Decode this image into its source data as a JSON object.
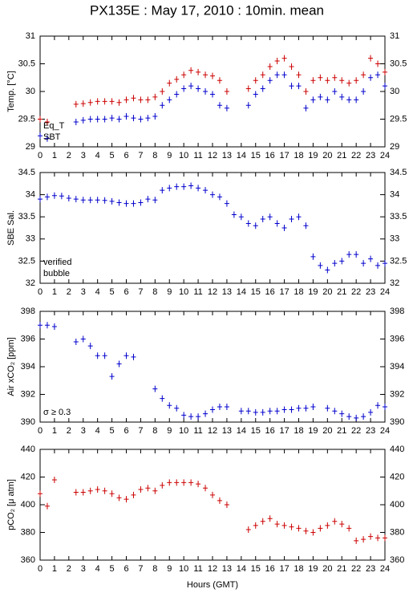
{
  "chart_data": [
    {
      "type": "scatter",
      "title": "PX135E : May 17, 2010 : 10min. mean",
      "ylabel": "Temp. [°C]",
      "x": [
        0,
        0.5,
        1,
        1.5,
        2,
        2.5,
        3,
        3.5,
        4,
        4.5,
        5,
        5.5,
        6,
        6.5,
        7,
        7.5,
        8,
        8.5,
        9,
        9.5,
        10,
        10.5,
        11,
        11.5,
        12,
        12.5,
        13,
        13.5,
        14,
        14.5,
        15,
        15.5,
        16,
        16.5,
        17,
        17.5,
        18,
        18.5,
        19,
        19.5,
        20,
        20.5,
        21,
        21.5,
        22,
        22.5,
        23,
        23.5,
        24
      ],
      "series": [
        {
          "name": "Eq_T",
          "color": "#cc0000",
          "values": [
            29.5,
            29.45,
            null,
            null,
            null,
            29.77,
            29.78,
            29.8,
            29.82,
            29.82,
            29.82,
            29.8,
            29.85,
            29.88,
            29.85,
            29.85,
            29.9,
            30.0,
            30.15,
            30.22,
            30.3,
            30.38,
            30.35,
            30.3,
            30.28,
            30.2,
            30.0,
            null,
            null,
            30.05,
            30.2,
            30.3,
            30.45,
            30.55,
            30.6,
            30.45,
            30.3,
            30.0,
            30.2,
            30.25,
            30.2,
            30.25,
            30.2,
            30.15,
            30.2,
            30.3,
            30.6,
            30.5,
            30.35
          ]
        },
        {
          "name": "SBT",
          "color": "#0000cc",
          "values": [
            29.2,
            29.15,
            null,
            null,
            null,
            29.45,
            29.48,
            29.5,
            29.5,
            29.5,
            29.52,
            29.5,
            29.55,
            29.52,
            29.5,
            29.52,
            29.55,
            29.75,
            29.85,
            29.95,
            30.05,
            30.1,
            30.05,
            30.0,
            29.95,
            29.75,
            29.7,
            null,
            null,
            29.75,
            29.95,
            30.05,
            30.2,
            30.3,
            30.3,
            30.1,
            30.1,
            29.7,
            29.85,
            29.9,
            29.85,
            30.0,
            29.9,
            29.85,
            29.85,
            30.0,
            30.25,
            30.3,
            30.1
          ]
        }
      ],
      "xlim": [
        0,
        24
      ],
      "xticks": [
        0,
        1,
        2,
        3,
        4,
        5,
        6,
        7,
        8,
        9,
        10,
        11,
        12,
        13,
        14,
        15,
        16,
        17,
        18,
        19,
        20,
        21,
        22,
        23,
        24
      ],
      "ylim": [
        29,
        31
      ],
      "yticks": [
        29,
        29.5,
        30,
        30.5,
        31
      ]
    },
    {
      "type": "scatter",
      "ylabel": "SBE Sal.",
      "x": [
        0,
        0.5,
        1,
        1.5,
        2,
        2.5,
        3,
        3.5,
        4,
        4.5,
        5,
        5.5,
        6,
        6.5,
        7,
        7.5,
        8,
        8.5,
        9,
        9.5,
        10,
        10.5,
        11,
        11.5,
        12,
        12.5,
        13,
        13.5,
        14,
        14.5,
        15,
        15.5,
        16,
        16.5,
        17,
        17.5,
        18,
        18.5,
        19,
        19.5,
        20,
        20.5,
        21,
        21.5,
        22,
        22.5,
        23,
        23.5,
        24
      ],
      "series": [
        {
          "name": "verified",
          "color": "#0000cc",
          "values": [
            33.9,
            33.95,
            33.98,
            33.97,
            33.92,
            33.9,
            33.88,
            33.88,
            33.88,
            33.87,
            33.85,
            33.82,
            33.8,
            33.8,
            33.82,
            33.9,
            33.88,
            34.1,
            34.15,
            34.18,
            34.18,
            34.2,
            34.15,
            34.1,
            34.0,
            33.95,
            33.8,
            33.55,
            33.5,
            33.35,
            33.3,
            33.45,
            33.5,
            33.35,
            33.25,
            33.45,
            33.5,
            33.3,
            32.6,
            32.4,
            32.3,
            32.45,
            32.5,
            32.65,
            32.65,
            32.45,
            32.55,
            32.4,
            32.45
          ]
        }
      ],
      "annotations": [
        {
          "text": "bubble",
          "color": "#cc00cc"
        }
      ],
      "xlim": [
        0,
        24
      ],
      "xticks": [
        0,
        1,
        2,
        3,
        4,
        5,
        6,
        7,
        8,
        9,
        10,
        11,
        12,
        13,
        14,
        15,
        16,
        17,
        18,
        19,
        20,
        21,
        22,
        23,
        24
      ],
      "ylim": [
        32,
        34.5
      ],
      "yticks": [
        32,
        32.5,
        33,
        33.5,
        34,
        34.5
      ]
    },
    {
      "type": "scatter",
      "ylabel": "Air xCO₂ [ppm]",
      "x": [
        0,
        0.5,
        1,
        1.5,
        2,
        2.5,
        3,
        3.5,
        4,
        4.5,
        5,
        5.5,
        6,
        6.5,
        7,
        7.5,
        8,
        8.5,
        9,
        9.5,
        10,
        10.5,
        11,
        11.5,
        12,
        12.5,
        13,
        13.5,
        14,
        14.5,
        15,
        15.5,
        16,
        16.5,
        17,
        17.5,
        18,
        18.5,
        19,
        19.5,
        20,
        20.5,
        21,
        21.5,
        22,
        22.5,
        23,
        23.5,
        24
      ],
      "series": [
        {
          "name": "xCO2",
          "color": "#0000cc",
          "values": [
            397,
            397,
            396.9,
            null,
            null,
            395.8,
            396,
            395.5,
            394.8,
            394.8,
            393.3,
            394.2,
            394.8,
            394.7,
            null,
            null,
            392.4,
            391.7,
            391.2,
            391,
            390.5,
            390.4,
            390.4,
            390.6,
            390.9,
            391.1,
            391.1,
            null,
            390.8,
            390.8,
            390.7,
            390.7,
            390.8,
            390.8,
            390.9,
            390.9,
            391,
            391,
            391.1,
            null,
            391,
            390.8,
            390.6,
            390.4,
            390.3,
            390.4,
            390.7,
            391.2,
            391.1
          ]
        }
      ],
      "annotations": [
        {
          "text": "σ ≥ 0.3",
          "color": "#cc00cc"
        }
      ],
      "xlim": [
        0,
        24
      ],
      "xticks": [
        0,
        1,
        2,
        3,
        4,
        5,
        6,
        7,
        8,
        9,
        10,
        11,
        12,
        13,
        14,
        15,
        16,
        17,
        18,
        19,
        20,
        21,
        22,
        23,
        24
      ],
      "ylim": [
        390,
        398
      ],
      "yticks": [
        390,
        392,
        394,
        396,
        398
      ]
    },
    {
      "type": "scatter",
      "ylabel": "pCO₂ [μ atm]",
      "xlabel": "Hours (GMT)",
      "x": [
        0,
        0.5,
        1,
        1.5,
        2,
        2.5,
        3,
        3.5,
        4,
        4.5,
        5,
        5.5,
        6,
        6.5,
        7,
        7.5,
        8,
        8.5,
        9,
        9.5,
        10,
        10.5,
        11,
        11.5,
        12,
        12.5,
        13,
        13.5,
        14,
        14.5,
        15,
        15.5,
        16,
        16.5,
        17,
        17.5,
        18,
        18.5,
        19,
        19.5,
        20,
        20.5,
        21,
        21.5,
        22,
        22.5,
        23,
        23.5,
        24
      ],
      "series": [
        {
          "name": "pCO2",
          "color": "#cc0000",
          "values": [
            408,
            399,
            418,
            null,
            null,
            409,
            409,
            410,
            411,
            410,
            408,
            405,
            404,
            407,
            411,
            412,
            410,
            414,
            416,
            416,
            416,
            416,
            415,
            412,
            407,
            403,
            400,
            null,
            null,
            382,
            385,
            388,
            390,
            386,
            385,
            384,
            383,
            381,
            380,
            383,
            385,
            388,
            386,
            383,
            374,
            375,
            377,
            376,
            376
          ]
        }
      ],
      "xlim": [
        0,
        24
      ],
      "xticks": [
        0,
        1,
        2,
        3,
        4,
        5,
        6,
        7,
        8,
        9,
        10,
        11,
        12,
        13,
        14,
        15,
        16,
        17,
        18,
        19,
        20,
        21,
        22,
        23,
        24
      ],
      "ylim": [
        360,
        440
      ],
      "yticks": [
        360,
        380,
        400,
        420,
        440
      ]
    }
  ]
}
